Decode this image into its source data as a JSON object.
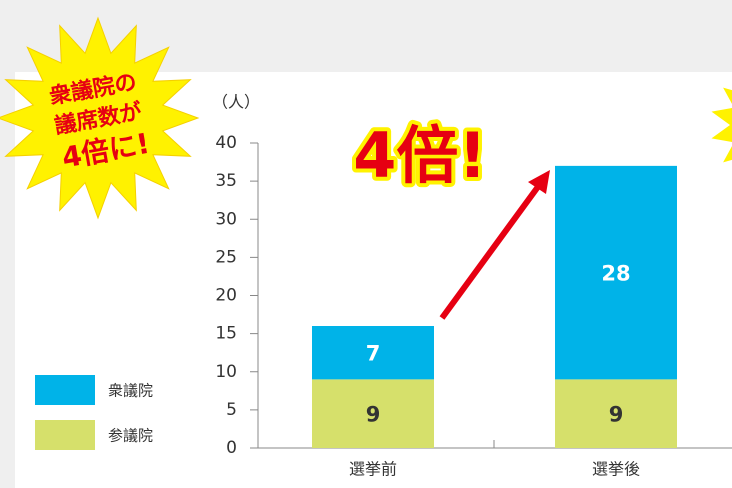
{
  "chart_data": {
    "type": "bar",
    "stacked": true,
    "badge_lines": [
      "衆議院の",
      "議席数が",
      "4倍に!"
    ],
    "callout": "4倍!",
    "y_unit_label": "（人）",
    "categories": [
      "選挙前",
      "選挙後"
    ],
    "series": [
      {
        "name": "衆議院",
        "color": "#00b3e8",
        "values": [
          7,
          28
        ]
      },
      {
        "name": "参議院",
        "color": "#d6e06b",
        "values": [
          9,
          9
        ]
      }
    ],
    "ylim": [
      0,
      40
    ],
    "yticks": [
      0,
      5,
      10,
      15,
      20,
      25,
      30,
      35,
      40
    ]
  }
}
